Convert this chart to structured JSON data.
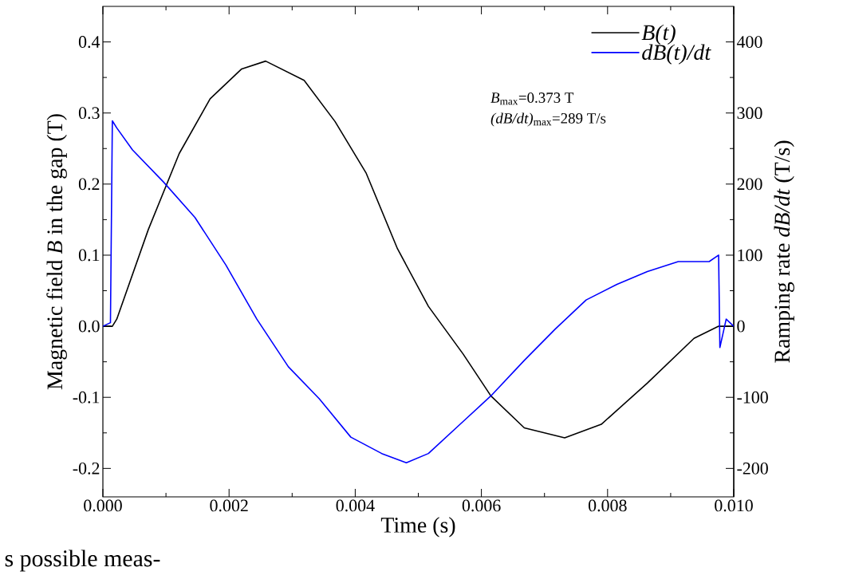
{
  "chart_data": {
    "type": "line",
    "xlabel": "Time (s)",
    "ylabel": "Magnetic field *B* in the gap (T)",
    "y2label": "Ramping rate *dB/dt* (T/s)",
    "xlim": [
      0,
      0.01
    ],
    "ylim": [
      -0.24,
      0.45
    ],
    "y2lim": [
      -240,
      450
    ],
    "xticks": [
      {
        "value": 0,
        "label": "0.000"
      },
      {
        "value": 0.002,
        "label": "0.002"
      },
      {
        "value": 0.004,
        "label": "0.004"
      },
      {
        "value": 0.006,
        "label": "0.006"
      },
      {
        "value": 0.008,
        "label": "0.008"
      },
      {
        "value": 0.01,
        "label": "0.010"
      }
    ],
    "yticks": [
      {
        "value": -0.2,
        "label": "-0.2"
      },
      {
        "value": -0.1,
        "label": "-0.1"
      },
      {
        "value": 0,
        "label": "0.0"
      },
      {
        "value": 0.1,
        "label": "0.1"
      },
      {
        "value": 0.2,
        "label": "0.2"
      },
      {
        "value": 0.3,
        "label": "0.3"
      },
      {
        "value": 0.4,
        "label": "0.4"
      }
    ],
    "y2ticks": [
      -200,
      -100,
      0,
      100,
      200,
      300,
      400
    ],
    "legend": "top right",
    "line_style": "solid",
    "series": [
      {
        "name": "B(t)",
        "color": "#000000",
        "x": [
          0,
          0.00015,
          0.00022,
          0.00072,
          0.00121,
          0.0017,
          0.0022,
          0.00258,
          0.00319,
          0.00368,
          0.00417,
          0.00467,
          0.00516,
          0.00571,
          0.00615,
          0.00668,
          0.00732,
          0.0079,
          0.00863,
          0.00937,
          0.00976,
          0.01
        ],
        "values": [
          0,
          0,
          0.01,
          0.136,
          0.243,
          0.32,
          0.362,
          0.373,
          0.346,
          0.288,
          0.216,
          0.109,
          0.028,
          -0.039,
          -0.098,
          -0.143,
          -0.157,
          -0.138,
          -0.08,
          -0.017,
          0,
          0
        ]
      },
      {
        "name": "dB(t)/dt",
        "color": "#0000ff",
        "axis": "y2",
        "x": [
          0,
          0.00012,
          0.00015,
          0.00022,
          0.00047,
          0.00096,
          0.00146,
          0.00195,
          0.00244,
          0.00294,
          0.00343,
          0.00393,
          0.00442,
          0.00481,
          0.00516,
          0.00571,
          0.00615,
          0.00668,
          0.00717,
          0.00766,
          0.00815,
          0.00863,
          0.00912,
          0.00961,
          0.00976,
          0.00978,
          0.00988,
          0.01
        ],
        "values": [
          0,
          5,
          289,
          279,
          248,
          203,
          153,
          86,
          10,
          -57,
          -102,
          -156,
          -179,
          -192,
          -179,
          -134,
          -98,
          -48,
          -4,
          37,
          59,
          77,
          91,
          91,
          100,
          -30,
          10,
          0
        ]
      }
    ],
    "annotations": [
      "*B*$_{max}$=0.373 T",
      "*(dB/dt)*$_{max}$=289 T/s",
      "s possible meas-"
    ]
  }
}
